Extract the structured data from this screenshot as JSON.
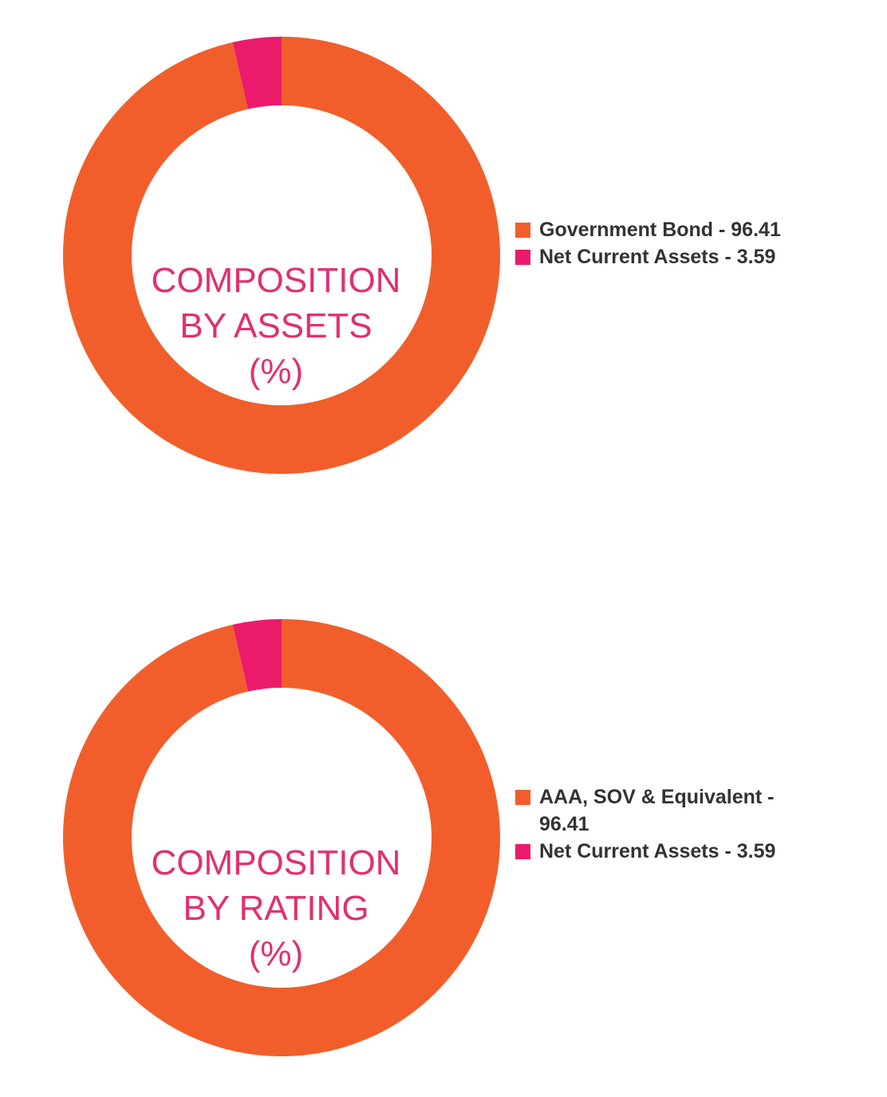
{
  "chart_data": [
    {
      "type": "pie",
      "title_lines": [
        "COMPOSITION",
        "BY ASSETS",
        "(%)"
      ],
      "slices": [
        {
          "label": "Government Bond - 96.41",
          "value": 96.41,
          "color": "#F15E2B"
        },
        {
          "label": "Net Current Assets - 3.59",
          "value": 3.59,
          "color": "#EC1A6A"
        }
      ],
      "legend": "right"
    },
    {
      "type": "pie",
      "title_lines": [
        "COMPOSITION",
        "BY RATING",
        "(%)"
      ],
      "slices": [
        {
          "label": "AAA, SOV & Equivalent - 96.41",
          "value": 96.41,
          "color": "#F15E2B"
        },
        {
          "label": "Net Current Assets - 3.59",
          "value": 3.59,
          "color": "#EC1A6A"
        }
      ],
      "legend": "right"
    }
  ]
}
